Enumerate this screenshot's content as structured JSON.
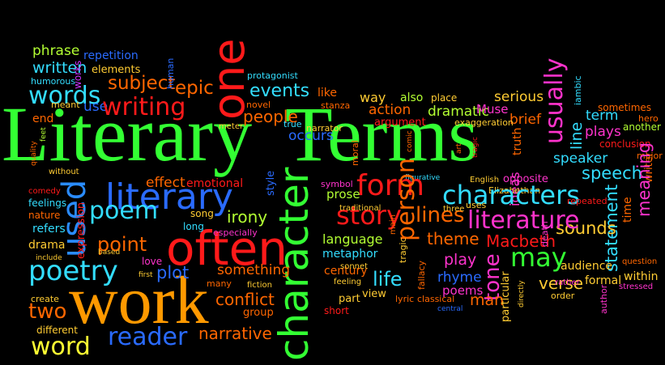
{
  "words": {
    "w0": {
      "text": "Literary",
      "color": "#33ff33"
    },
    "w1": {
      "text": "Terms",
      "color": "#33ff33"
    },
    "w2": {
      "text": "work",
      "color": "#ff9900"
    },
    "w3": {
      "text": "often",
      "color": "#ff1a1a"
    },
    "w4": {
      "text": "character",
      "color": "#33ff33"
    },
    "w5": {
      "text": "one",
      "color": "#ff1a1a"
    },
    "w6": {
      "text": "literary",
      "color": "#2a6bff"
    },
    "w7": {
      "text": "used",
      "color": "#2a8cff"
    },
    "w8": {
      "text": "poetry",
      "color": "#33ddff"
    },
    "w9": {
      "text": "words",
      "color": "#33ddff"
    },
    "w10": {
      "text": "writing",
      "color": "#ff1a1a"
    },
    "w11": {
      "text": "characters",
      "color": "#33ddff"
    },
    "w12": {
      "text": "form",
      "color": "#ff1a1a"
    },
    "w13": {
      "text": "story",
      "color": "#ff1a1a"
    },
    "w14": {
      "text": "literature",
      "color": "#ff33cc"
    },
    "w15": {
      "text": "poem",
      "color": "#33ddff"
    },
    "w16": {
      "text": "word",
      "color": "#ffff33"
    },
    "w17": {
      "text": "reader",
      "color": "#2a6bff"
    },
    "w18": {
      "text": "two",
      "color": "#ff6600"
    },
    "w19": {
      "text": "plot",
      "color": "#2a6bff"
    },
    "w20": {
      "text": "events",
      "color": "#33ddff"
    },
    "w21": {
      "text": "people",
      "color": "#ff6600"
    },
    "w22": {
      "text": "subject",
      "color": "#ff6600"
    },
    "w23": {
      "text": "written",
      "color": "#33ddff"
    },
    "w24": {
      "text": "phrase",
      "color": "#b3ff33"
    },
    "w25": {
      "text": "repetition",
      "color": "#2a6bff"
    },
    "w26": {
      "text": "elements",
      "color": "#ffcc33"
    },
    "w27": {
      "text": "humorous",
      "color": "#33ddff"
    },
    "w28": {
      "text": "epic",
      "color": "#ff6600"
    },
    "w29": {
      "text": "use",
      "color": "#2a6bff"
    },
    "w30": {
      "text": "end",
      "color": "#ff6600"
    },
    "w31": {
      "text": "meant",
      "color": "#ffcc33"
    },
    "w32": {
      "text": "works",
      "color": "#cc33ff"
    },
    "w33": {
      "text": "human",
      "color": "#2a6bff"
    },
    "w34": {
      "text": "protagonist",
      "color": "#33ddff"
    },
    "w35": {
      "text": "novel",
      "color": "#ff6600"
    },
    "w36": {
      "text": "like",
      "color": "#ff6600"
    },
    "w37": {
      "text": "stanza",
      "color": "#ff6600"
    },
    "w38": {
      "text": "way",
      "color": "#ffcc33"
    },
    "w39": {
      "text": "also",
      "color": "#b3ff33"
    },
    "w40": {
      "text": "place",
      "color": "#ffcc33"
    },
    "w41": {
      "text": "serious",
      "color": "#ffcc33"
    },
    "w42": {
      "text": "usually",
      "color": "#ff33cc"
    },
    "w43": {
      "text": "iambic",
      "color": "#33ddff"
    },
    "w44": {
      "text": "sometimes",
      "color": "#ff6600"
    },
    "w45": {
      "text": "hero",
      "color": "#ff6600"
    },
    "w46": {
      "text": "action",
      "color": "#ff6600"
    },
    "w47": {
      "text": "dramatic",
      "color": "#b3ff33"
    },
    "w48": {
      "text": "Muse",
      "color": "#ff33cc"
    },
    "w49": {
      "text": "brief",
      "color": "#ff6600"
    },
    "w50": {
      "text": "argument",
      "color": "#ff1a1a"
    },
    "w51": {
      "text": "exaggeration",
      "color": "#ffcc33"
    },
    "w52": {
      "text": "term",
      "color": "#33ddff"
    },
    "w53": {
      "text": "line",
      "color": "#33ddff"
    },
    "w54": {
      "text": "plays",
      "color": "#ff33cc"
    },
    "w55": {
      "text": "another",
      "color": "#b3ff33"
    },
    "w56": {
      "text": "conclusion",
      "color": "#ff1a1a"
    },
    "w57": {
      "text": "major",
      "color": "#ff6600"
    },
    "w58": {
      "text": "speaker",
      "color": "#33ddff"
    },
    "w59": {
      "text": "speech",
      "color": "#33ddff"
    },
    "w60": {
      "text": "true",
      "color": "#33ddff"
    },
    "w61": {
      "text": "narrator",
      "color": "#ffcc33"
    },
    "w62": {
      "text": "occurs",
      "color": "#2a6bff"
    },
    "w63": {
      "text": "meter",
      "color": "#ffcc33"
    },
    "w64": {
      "text": "moral",
      "color": "#ff6600"
    },
    "w65": {
      "text": "truth",
      "color": "#ff6600"
    },
    "w66": {
      "text": "comic",
      "color": "#ff6600"
    },
    "w67": {
      "text": "ideas",
      "color": "#ff33cc"
    },
    "w68": {
      "text": "effect",
      "color": "#ff6600"
    },
    "w69": {
      "text": "emotional",
      "color": "#ff1a1a"
    },
    "w70": {
      "text": "style",
      "color": "#2a6bff"
    },
    "w71": {
      "text": "symbol",
      "color": "#ff33cc"
    },
    "w72": {
      "text": "prose",
      "color": "#b3ff33"
    },
    "w73": {
      "text": "figurative",
      "color": "#33ddff"
    },
    "w74": {
      "text": "English",
      "color": "#ffcc33"
    },
    "w75": {
      "text": "opposite",
      "color": "#ff33cc"
    },
    "w76": {
      "text": "Elizabethan",
      "color": "#ffcc33"
    },
    "w77": {
      "text": "repeated",
      "color": "#ff1a1a"
    },
    "w78": {
      "text": "writer",
      "color": "#ff6600"
    },
    "w79": {
      "text": "meaning",
      "color": "#ff33cc"
    },
    "w80": {
      "text": "time",
      "color": "#ff6600"
    },
    "w81": {
      "text": "statement",
      "color": "#33ddff"
    },
    "w82": {
      "text": "sounds",
      "color": "#ffcc33"
    },
    "w83": {
      "text": "person",
      "color": "#ff6600"
    },
    "w84": {
      "text": "lines",
      "color": "#ff6600"
    },
    "w85": {
      "text": "theme",
      "color": "#ff6600"
    },
    "w86": {
      "text": "Macbeth",
      "color": "#ff1a1a"
    },
    "w87": {
      "text": "language",
      "color": "#b3ff33"
    },
    "w88": {
      "text": "metaphor",
      "color": "#33ddff"
    },
    "w89": {
      "text": "play",
      "color": "#ff33cc"
    },
    "w90": {
      "text": "may",
      "color": "#33ff33"
    },
    "w91": {
      "text": "tone",
      "color": "#ff33cc"
    },
    "w92": {
      "text": "rhyme",
      "color": "#2a6bff"
    },
    "w93": {
      "text": "poems",
      "color": "#ff33cc"
    },
    "w94": {
      "text": "life",
      "color": "#33ddff"
    },
    "w95": {
      "text": "century",
      "color": "#ff6600"
    },
    "w96": {
      "text": "sonnet",
      "color": "#ffcc33"
    },
    "w97": {
      "text": "feeling",
      "color": "#ffcc33"
    },
    "w98": {
      "text": "part",
      "color": "#ffcc33"
    },
    "w99": {
      "text": "view",
      "color": "#ffcc33"
    },
    "w100": {
      "text": "lyric",
      "color": "#ff6600"
    },
    "w101": {
      "text": "classical",
      "color": "#ff6600"
    },
    "w102": {
      "text": "man",
      "color": "#ff6600"
    },
    "w103": {
      "text": "verse",
      "color": "#ffcc33"
    },
    "w104": {
      "text": "formal",
      "color": "#ffcc33"
    },
    "w105": {
      "text": "within",
      "color": "#ffcc33"
    },
    "w106": {
      "text": "audience",
      "color": "#ffcc33"
    },
    "w107": {
      "text": "question",
      "color": "#ff6600"
    },
    "w108": {
      "text": "stressed",
      "color": "#ff33cc"
    },
    "w109": {
      "text": "author",
      "color": "#ff33cc"
    },
    "w110": {
      "text": "order",
      "color": "#ffcc33"
    },
    "w111": {
      "text": "rather",
      "color": "#ff33cc"
    },
    "w112": {
      "text": "directly",
      "color": "#ffcc33"
    },
    "w113": {
      "text": "particular",
      "color": "#ffcc33"
    },
    "w114": {
      "text": "central",
      "color": "#2a6bff"
    },
    "w115": {
      "text": "short",
      "color": "#ff1a1a"
    },
    "w116": {
      "text": "fallacy",
      "color": "#ff6600"
    },
    "w117": {
      "text": "tragic",
      "color": "#ffcc33"
    },
    "w118": {
      "text": "main",
      "color": "#ff6600"
    },
    "w119": {
      "text": "traditional",
      "color": "#ffcc33"
    },
    "w120": {
      "text": "three",
      "color": "#ffcc33"
    },
    "w121": {
      "text": "uses",
      "color": "#ffcc33"
    },
    "w122": {
      "text": "art",
      "color": "#ff6600"
    },
    "w123": {
      "text": "tragic",
      "color": "#ff1a1a"
    },
    "w124": {
      "text": "conflict",
      "color": "#ff6600"
    },
    "w125": {
      "text": "group",
      "color": "#ff6600"
    },
    "w126": {
      "text": "narrative",
      "color": "#ff6600"
    },
    "w127": {
      "text": "something",
      "color": "#ff6600"
    },
    "w128": {
      "text": "fiction",
      "color": "#ffcc33"
    },
    "w129": {
      "text": "many",
      "color": "#ff6600"
    },
    "w130": {
      "text": "especially",
      "color": "#ff33cc"
    },
    "w131": {
      "text": "irony",
      "color": "#b3ff33"
    },
    "w132": {
      "text": "song",
      "color": "#ffcc33"
    },
    "w133": {
      "text": "long",
      "color": "#33ddff"
    },
    "w134": {
      "text": "love",
      "color": "#ff33cc"
    },
    "w135": {
      "text": "first",
      "color": "#ffcc33"
    },
    "w136": {
      "text": "based",
      "color": "#ffcc33"
    },
    "w137": {
      "text": "point",
      "color": "#ff6600"
    },
    "w138": {
      "text": "create",
      "color": "#ffcc33"
    },
    "w139": {
      "text": "different",
      "color": "#ffcc33"
    },
    "w140": {
      "text": "include",
      "color": "#ffcc33"
    },
    "w141": {
      "text": "drama",
      "color": "#ffcc33"
    },
    "w142": {
      "text": "expression",
      "color": "#ff1a1a"
    },
    "w143": {
      "text": "refers",
      "color": "#33ddff"
    },
    "w144": {
      "text": "nature",
      "color": "#ff6600"
    },
    "w145": {
      "text": "feelings",
      "color": "#33ddff"
    },
    "w146": {
      "text": "comedy",
      "color": "#ff1a1a"
    },
    "w147": {
      "text": "without",
      "color": "#ffcc33"
    },
    "w148": {
      "text": "quality",
      "color": "#ff6600"
    },
    "w149": {
      "text": "feet",
      "color": "#b3ff33"
    },
    "w150": {
      "text": "death",
      "color": "#ff33cc"
    }
  }
}
